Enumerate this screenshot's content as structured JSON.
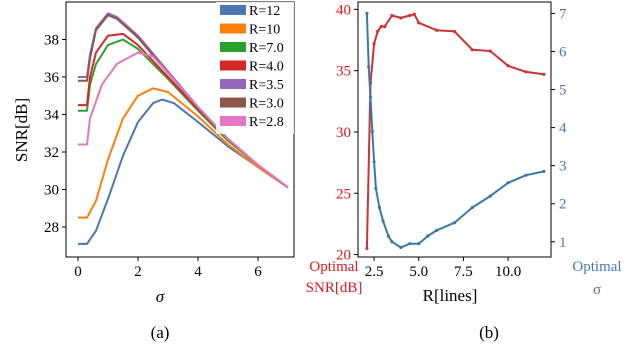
{
  "chart_data": [
    {
      "type": "line",
      "panel_label": "(a)",
      "xlabel": "σ",
      "ylabel": "SNR[dB]",
      "xlim": [
        -0.4,
        7.2
      ],
      "ylim": [
        26.4,
        40.0
      ],
      "xticks": [
        "0",
        "2",
        "4",
        "6"
      ],
      "yticks": [
        "28",
        "30",
        "32",
        "34",
        "36",
        "38"
      ],
      "legend_position": "top-right",
      "series": [
        {
          "name": "R=12",
          "color": "#4a77b4",
          "x": [
            0,
            0.3,
            0.6,
            1.0,
            1.5,
            2.0,
            2.5,
            2.8,
            3.2,
            4.0,
            5.0,
            6.0,
            7.0
          ],
          "y": [
            27.1,
            27.1,
            27.8,
            29.5,
            31.8,
            33.6,
            34.6,
            34.8,
            34.6,
            33.6,
            32.3,
            31.2,
            30.1
          ]
        },
        {
          "name": "R=10",
          "color": "#ff7f0e",
          "x": [
            0,
            0.3,
            0.6,
            1.0,
            1.5,
            2.0,
            2.5,
            3.0,
            4.0,
            5.0,
            6.0,
            7.0
          ],
          "y": [
            28.5,
            28.5,
            29.4,
            31.6,
            33.8,
            35.0,
            35.4,
            35.2,
            33.9,
            32.4,
            31.2,
            30.1
          ]
        },
        {
          "name": "R=7.0",
          "color": "#2ca02c",
          "x": [
            0,
            0.3,
            0.4,
            0.6,
            1.0,
            1.5,
            2.0,
            3.0,
            4.0,
            5.0,
            6.0,
            7.0
          ],
          "y": [
            34.2,
            34.2,
            35.6,
            36.7,
            37.7,
            38.0,
            37.5,
            35.9,
            34.2,
            32.6,
            31.3,
            30.1
          ]
        },
        {
          "name": "R=4.0",
          "color": "#d62728",
          "x": [
            0,
            0.3,
            0.4,
            0.6,
            1.0,
            1.5,
            2.0,
            3.0,
            4.0,
            5.0,
            6.0,
            7.0
          ],
          "y": [
            34.5,
            34.5,
            36.0,
            37.3,
            38.2,
            38.3,
            37.7,
            36.0,
            34.3,
            32.7,
            31.3,
            30.1
          ]
        },
        {
          "name": "R=3.5",
          "color": "#9467bd",
          "x": [
            0,
            0.3,
            0.4,
            0.6,
            1.0,
            1.3,
            2.0,
            3.0,
            4.0,
            5.0,
            6.0,
            7.0
          ],
          "y": [
            36.0,
            36.0,
            37.2,
            38.6,
            39.4,
            39.2,
            38.2,
            36.3,
            34.4,
            32.7,
            31.3,
            30.1
          ]
        },
        {
          "name": "R=3.0",
          "color": "#8c564b",
          "x": [
            0,
            0.3,
            0.4,
            0.6,
            1.0,
            1.3,
            2.0,
            3.0,
            4.0,
            5.0,
            6.0,
            7.0
          ],
          "y": [
            35.8,
            35.8,
            37.0,
            38.5,
            39.3,
            39.1,
            38.1,
            36.2,
            34.4,
            32.7,
            31.3,
            30.1
          ]
        },
        {
          "name": "R=2.8",
          "color": "#e377c2",
          "x": [
            0,
            0.3,
            0.4,
            0.8,
            1.3,
            2.0,
            2.5,
            3.0,
            4.0,
            5.0,
            6.0,
            7.0
          ],
          "y": [
            32.4,
            32.4,
            33.8,
            35.6,
            36.7,
            37.3,
            37.1,
            36.2,
            34.4,
            32.7,
            31.3,
            30.1
          ]
        }
      ]
    },
    {
      "type": "line",
      "panel_label": "(b)",
      "xlabel": "R[lines]",
      "xlim": [
        1.6,
        12.4
      ],
      "xticks": [
        "2.5",
        "5.0",
        "7.5",
        "10.0"
      ],
      "left_axis": {
        "label": [
          "Optimal",
          "SNR[dB]"
        ],
        "color": "#e0191d",
        "ylim": [
          19.8,
          40.6
        ],
        "yticks": [
          "20",
          "25",
          "30",
          "35",
          "40"
        ]
      },
      "right_axis": {
        "label": [
          "Optimal",
          "σ"
        ],
        "color": "#4a77b4",
        "ylim": [
          0.6,
          7.3
        ],
        "yticks": [
          "1",
          "2",
          "3",
          "4",
          "5",
          "6",
          "7"
        ]
      },
      "series": [
        {
          "name": "",
          "axis": "left",
          "color": "#cc3333",
          "x": [
            2.1,
            2.3,
            2.5,
            2.7,
            2.9,
            3.1,
            3.5,
            4.0,
            4.5,
            4.75,
            5.0,
            6.0,
            7.0,
            8.0,
            9.0,
            10.0,
            11.0,
            12.0
          ],
          "y": [
            20.5,
            34.0,
            37.2,
            38.2,
            38.6,
            38.6,
            39.5,
            39.3,
            39.5,
            39.6,
            38.9,
            38.3,
            38.2,
            36.7,
            36.6,
            35.4,
            34.9,
            34.7
          ]
        },
        {
          "name": "",
          "axis": "right",
          "color": "#3b78aa",
          "x": [
            2.1,
            2.2,
            2.3,
            2.4,
            2.5,
            2.6,
            2.8,
            3.0,
            3.3,
            3.5,
            4.0,
            4.5,
            5.0,
            5.5,
            6.0,
            7.0,
            8.0,
            9.0,
            10.0,
            11.0,
            12.0
          ],
          "y": [
            7.0,
            5.6,
            4.8,
            3.9,
            3.1,
            2.4,
            1.9,
            1.55,
            1.15,
            1.0,
            0.85,
            0.95,
            0.95,
            1.15,
            1.3,
            1.5,
            1.9,
            2.2,
            2.55,
            2.75,
            2.85
          ]
        }
      ]
    }
  ]
}
